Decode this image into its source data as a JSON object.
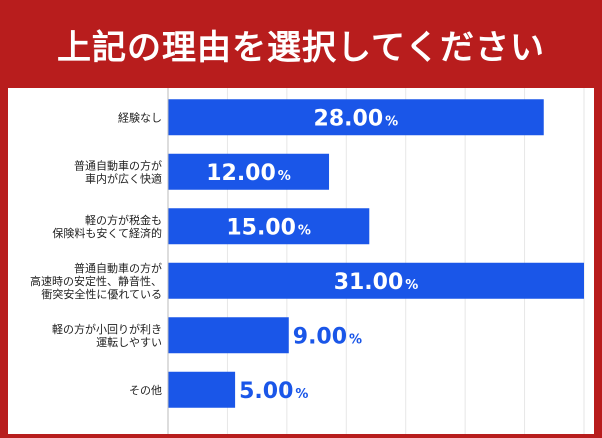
{
  "title": "上記の理由を選択してください",
  "colors": {
    "frame": "#b81d1d",
    "bar": "#1a56e8",
    "label_inside": "#ffffff",
    "label_outside": "#1a56e8",
    "grid": "#e6e6e6"
  },
  "chart_data": {
    "type": "bar",
    "orientation": "horizontal",
    "title": "上記の理由を選択してください",
    "categories": [
      "経験なし",
      "普通自動車の方が\n車内が広く快適",
      "軽の方が税金も\n保険料も安くて経済的",
      "普通自動車の方が\n高速時の安定性、静音性、\n衝突安全性に優れている",
      "軽の方が小回りが利き\n運転しやすい",
      "その他"
    ],
    "values": [
      28.0,
      12.0,
      15.0,
      31.0,
      9.0,
      5.0
    ],
    "value_labels": [
      "28.00",
      "12.00",
      "15.00",
      "31.00",
      "9.00",
      "5.00"
    ],
    "unit": "%",
    "xlim": [
      0,
      31
    ],
    "grid": true
  }
}
